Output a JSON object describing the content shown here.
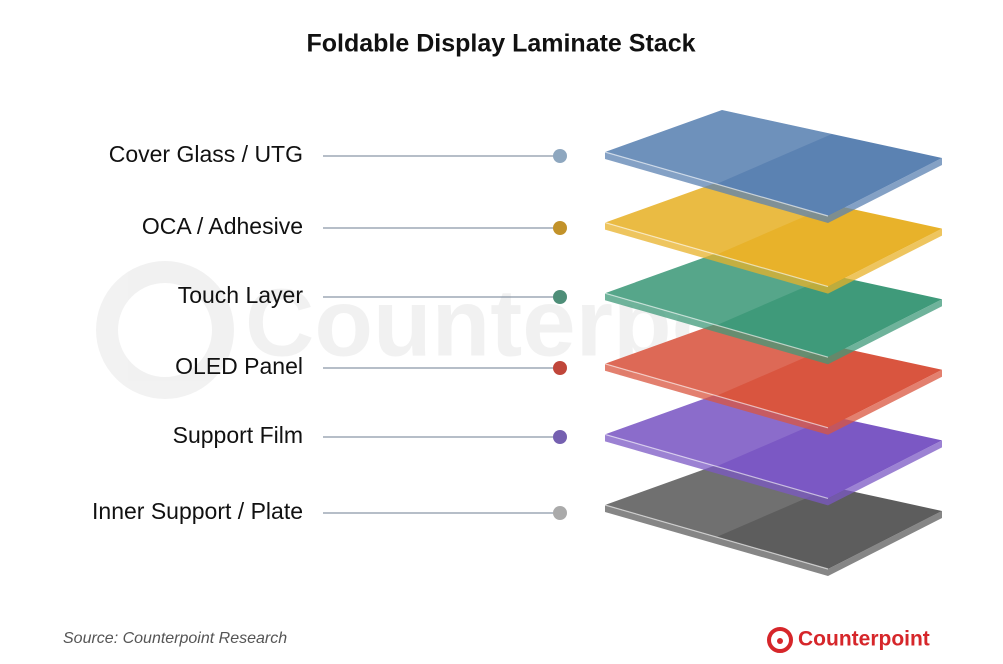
{
  "title": "Foldable Display Laminate Stack",
  "layers": [
    {
      "label": "Cover Glass / UTG",
      "color": "#5b82b2",
      "dot": "#8ea7bf"
    },
    {
      "label": "OCA / Adhesive",
      "color": "#e8b22a",
      "dot": "#c2922a"
    },
    {
      "label": "Touch Layer",
      "color": "#3f9a7a",
      "dot": "#4e8e78"
    },
    {
      "label": "OLED Panel",
      "color": "#d9553f",
      "dot": "#c0463a"
    },
    {
      "label": "Support Film",
      "color": "#7b58c4",
      "dot": "#7560b0"
    },
    {
      "label": "Inner Support / Plate",
      "color": "#5d5d5d",
      "dot": "#aaaaaa"
    }
  ],
  "watermark": "Counterpoint",
  "source": "Source: Counterpoint Research",
  "brand": "Counterpoint"
}
